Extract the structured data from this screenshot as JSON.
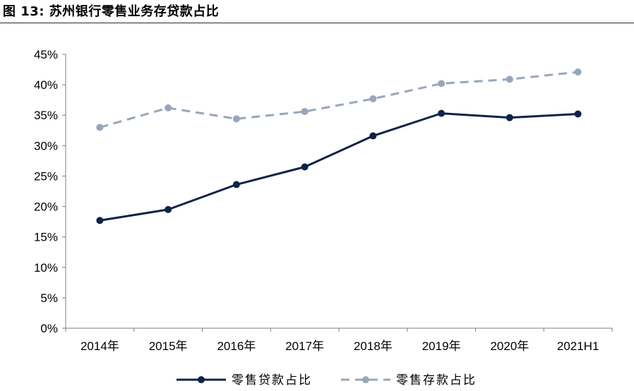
{
  "header": {
    "title": "图 13:  苏州银行零售业务存贷款占比"
  },
  "chart_data": {
    "type": "line",
    "title": "",
    "xlabel": "",
    "ylabel": "",
    "categories": [
      "2014年",
      "2015年",
      "2016年",
      "2017年",
      "2018年",
      "2019年",
      "2020年",
      "2021H1"
    ],
    "ylim": [
      0,
      45
    ],
    "yticks": [
      0,
      5,
      10,
      15,
      20,
      25,
      30,
      35,
      40,
      45
    ],
    "ytick_labels": [
      "0%",
      "5%",
      "10%",
      "15%",
      "20%",
      "25%",
      "30%",
      "35%",
      "40%",
      "45%"
    ],
    "grid": false,
    "legend_position": "bottom",
    "series": [
      {
        "name": "零售贷款占比",
        "values": [
          17.7,
          19.5,
          23.6,
          26.5,
          31.6,
          35.3,
          34.6,
          35.2
        ],
        "color": "#0f2346",
        "style": "solid"
      },
      {
        "name": "零售存款占比",
        "values": [
          33.0,
          36.2,
          34.4,
          35.6,
          37.7,
          40.2,
          40.9,
          42.1
        ],
        "color": "#97a7b9",
        "style": "dashed"
      }
    ]
  }
}
